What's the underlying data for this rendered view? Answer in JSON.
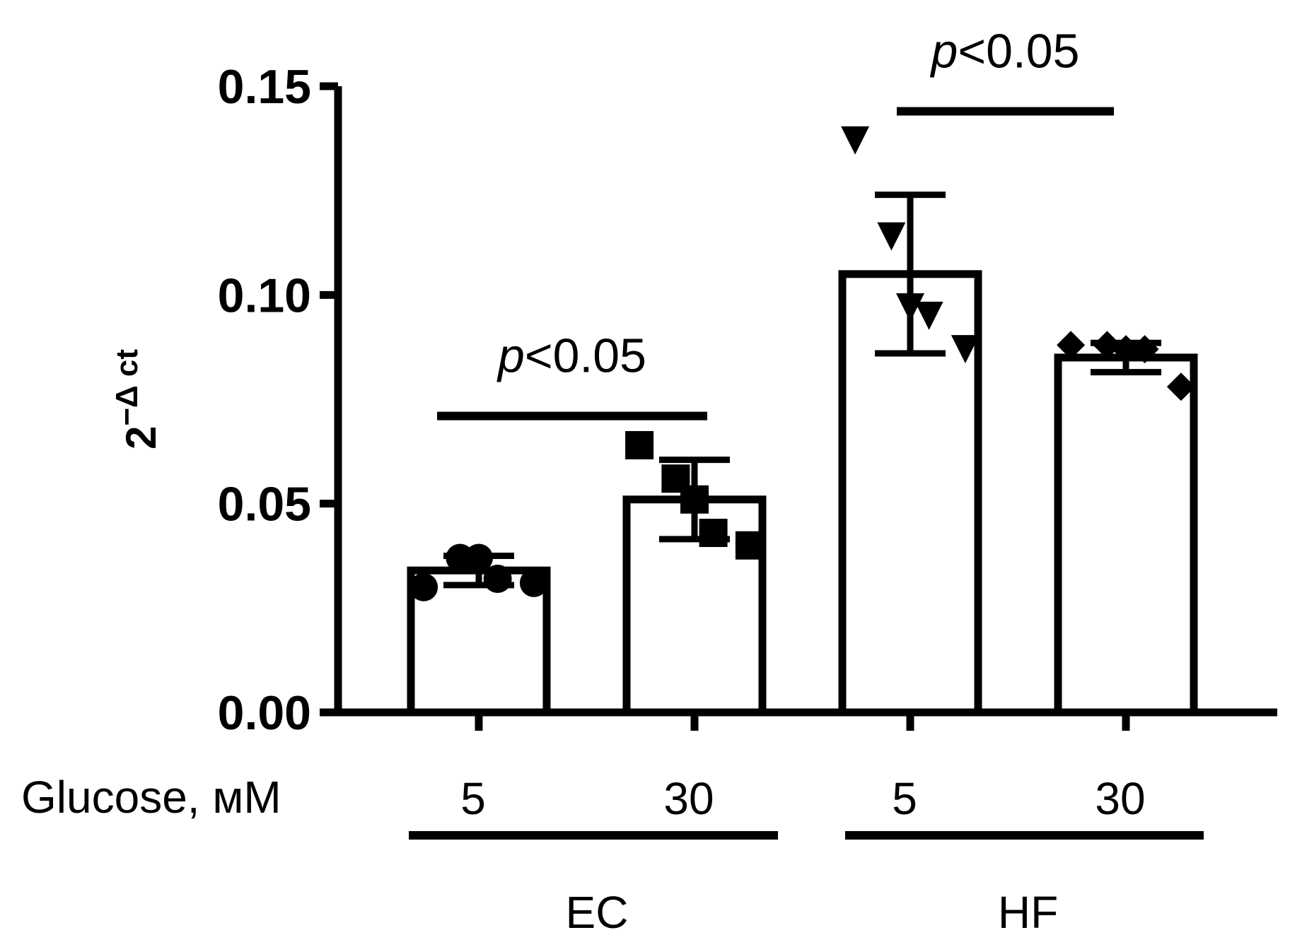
{
  "chart_data": {
    "type": "bar",
    "ylabel": {
      "base": "2",
      "superscript": "−Δ ct"
    },
    "ylim": [
      0,
      0.15
    ],
    "yticks": [
      "0.00",
      "0.05",
      "0.10",
      "0.15"
    ],
    "ytick_values": [
      0,
      0.05,
      0.1,
      0.15
    ],
    "xlabel": "Glucose, мМ",
    "categories": [
      "5",
      "30",
      "5",
      "30"
    ],
    "groups": [
      {
        "label": "EC",
        "categories": [
          0,
          1
        ]
      },
      {
        "label": "HF",
        "categories": [
          2,
          3
        ]
      }
    ],
    "values": [
      0.034,
      0.051,
      0.105,
      0.085
    ],
    "errors": [
      0.0035,
      0.0095,
      0.019,
      0.0035
    ],
    "markers": [
      "circle",
      "square",
      "triangle-down",
      "diamond"
    ],
    "points": [
      [
        0.03,
        0.037,
        0.037,
        0.032,
        0.031
      ],
      [
        0.064,
        0.056,
        0.051,
        0.043,
        0.04
      ],
      [
        0.137,
        0.114,
        0.097,
        0.095,
        0.087
      ],
      [
        0.088,
        0.088,
        0.087,
        0.087,
        0.078
      ]
    ],
    "annotations": [
      {
        "between": [
          0,
          1
        ],
        "p": "p",
        "rest": "<0.05",
        "level": 0.071
      },
      {
        "between": [
          2,
          3
        ],
        "p": "p",
        "rest": "<0.05",
        "level": 0.144
      }
    ],
    "grid": false,
    "legend": "none"
  }
}
